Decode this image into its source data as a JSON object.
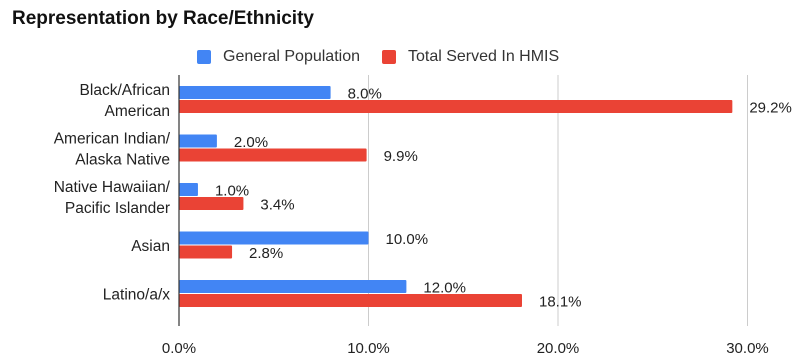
{
  "chart_data": {
    "type": "bar",
    "orientation": "horizontal",
    "title": "Representation by Race/Ethnicity",
    "categories": [
      [
        "Black/African",
        "American"
      ],
      [
        "American Indian/",
        "Alaska Native"
      ],
      [
        "Native Hawaiian/",
        "Pacific Islander"
      ],
      [
        "Asian"
      ],
      [
        "Latino/a/x"
      ]
    ],
    "series": [
      {
        "name": "General Population",
        "color": "#4285f4",
        "values": [
          8.0,
          2.0,
          1.0,
          10.0,
          12.0
        ],
        "labels": [
          "8.0%",
          "2.0%",
          "1.0%",
          "10.0%",
          "12.0%"
        ]
      },
      {
        "name": "Total Served In HMIS",
        "color": "#ea4335",
        "values": [
          29.2,
          9.9,
          3.4,
          2.8,
          18.1
        ],
        "labels": [
          "29.2%",
          "9.9%",
          "3.4%",
          "2.8%",
          "18.1%"
        ]
      }
    ],
    "xlim": [
      0,
      30
    ],
    "xticks": [
      0,
      10,
      20,
      30
    ],
    "xtick_labels": [
      "0.0%",
      "10.0%",
      "20.0%",
      "30.0%"
    ],
    "grid": true,
    "legend_position": "top"
  }
}
